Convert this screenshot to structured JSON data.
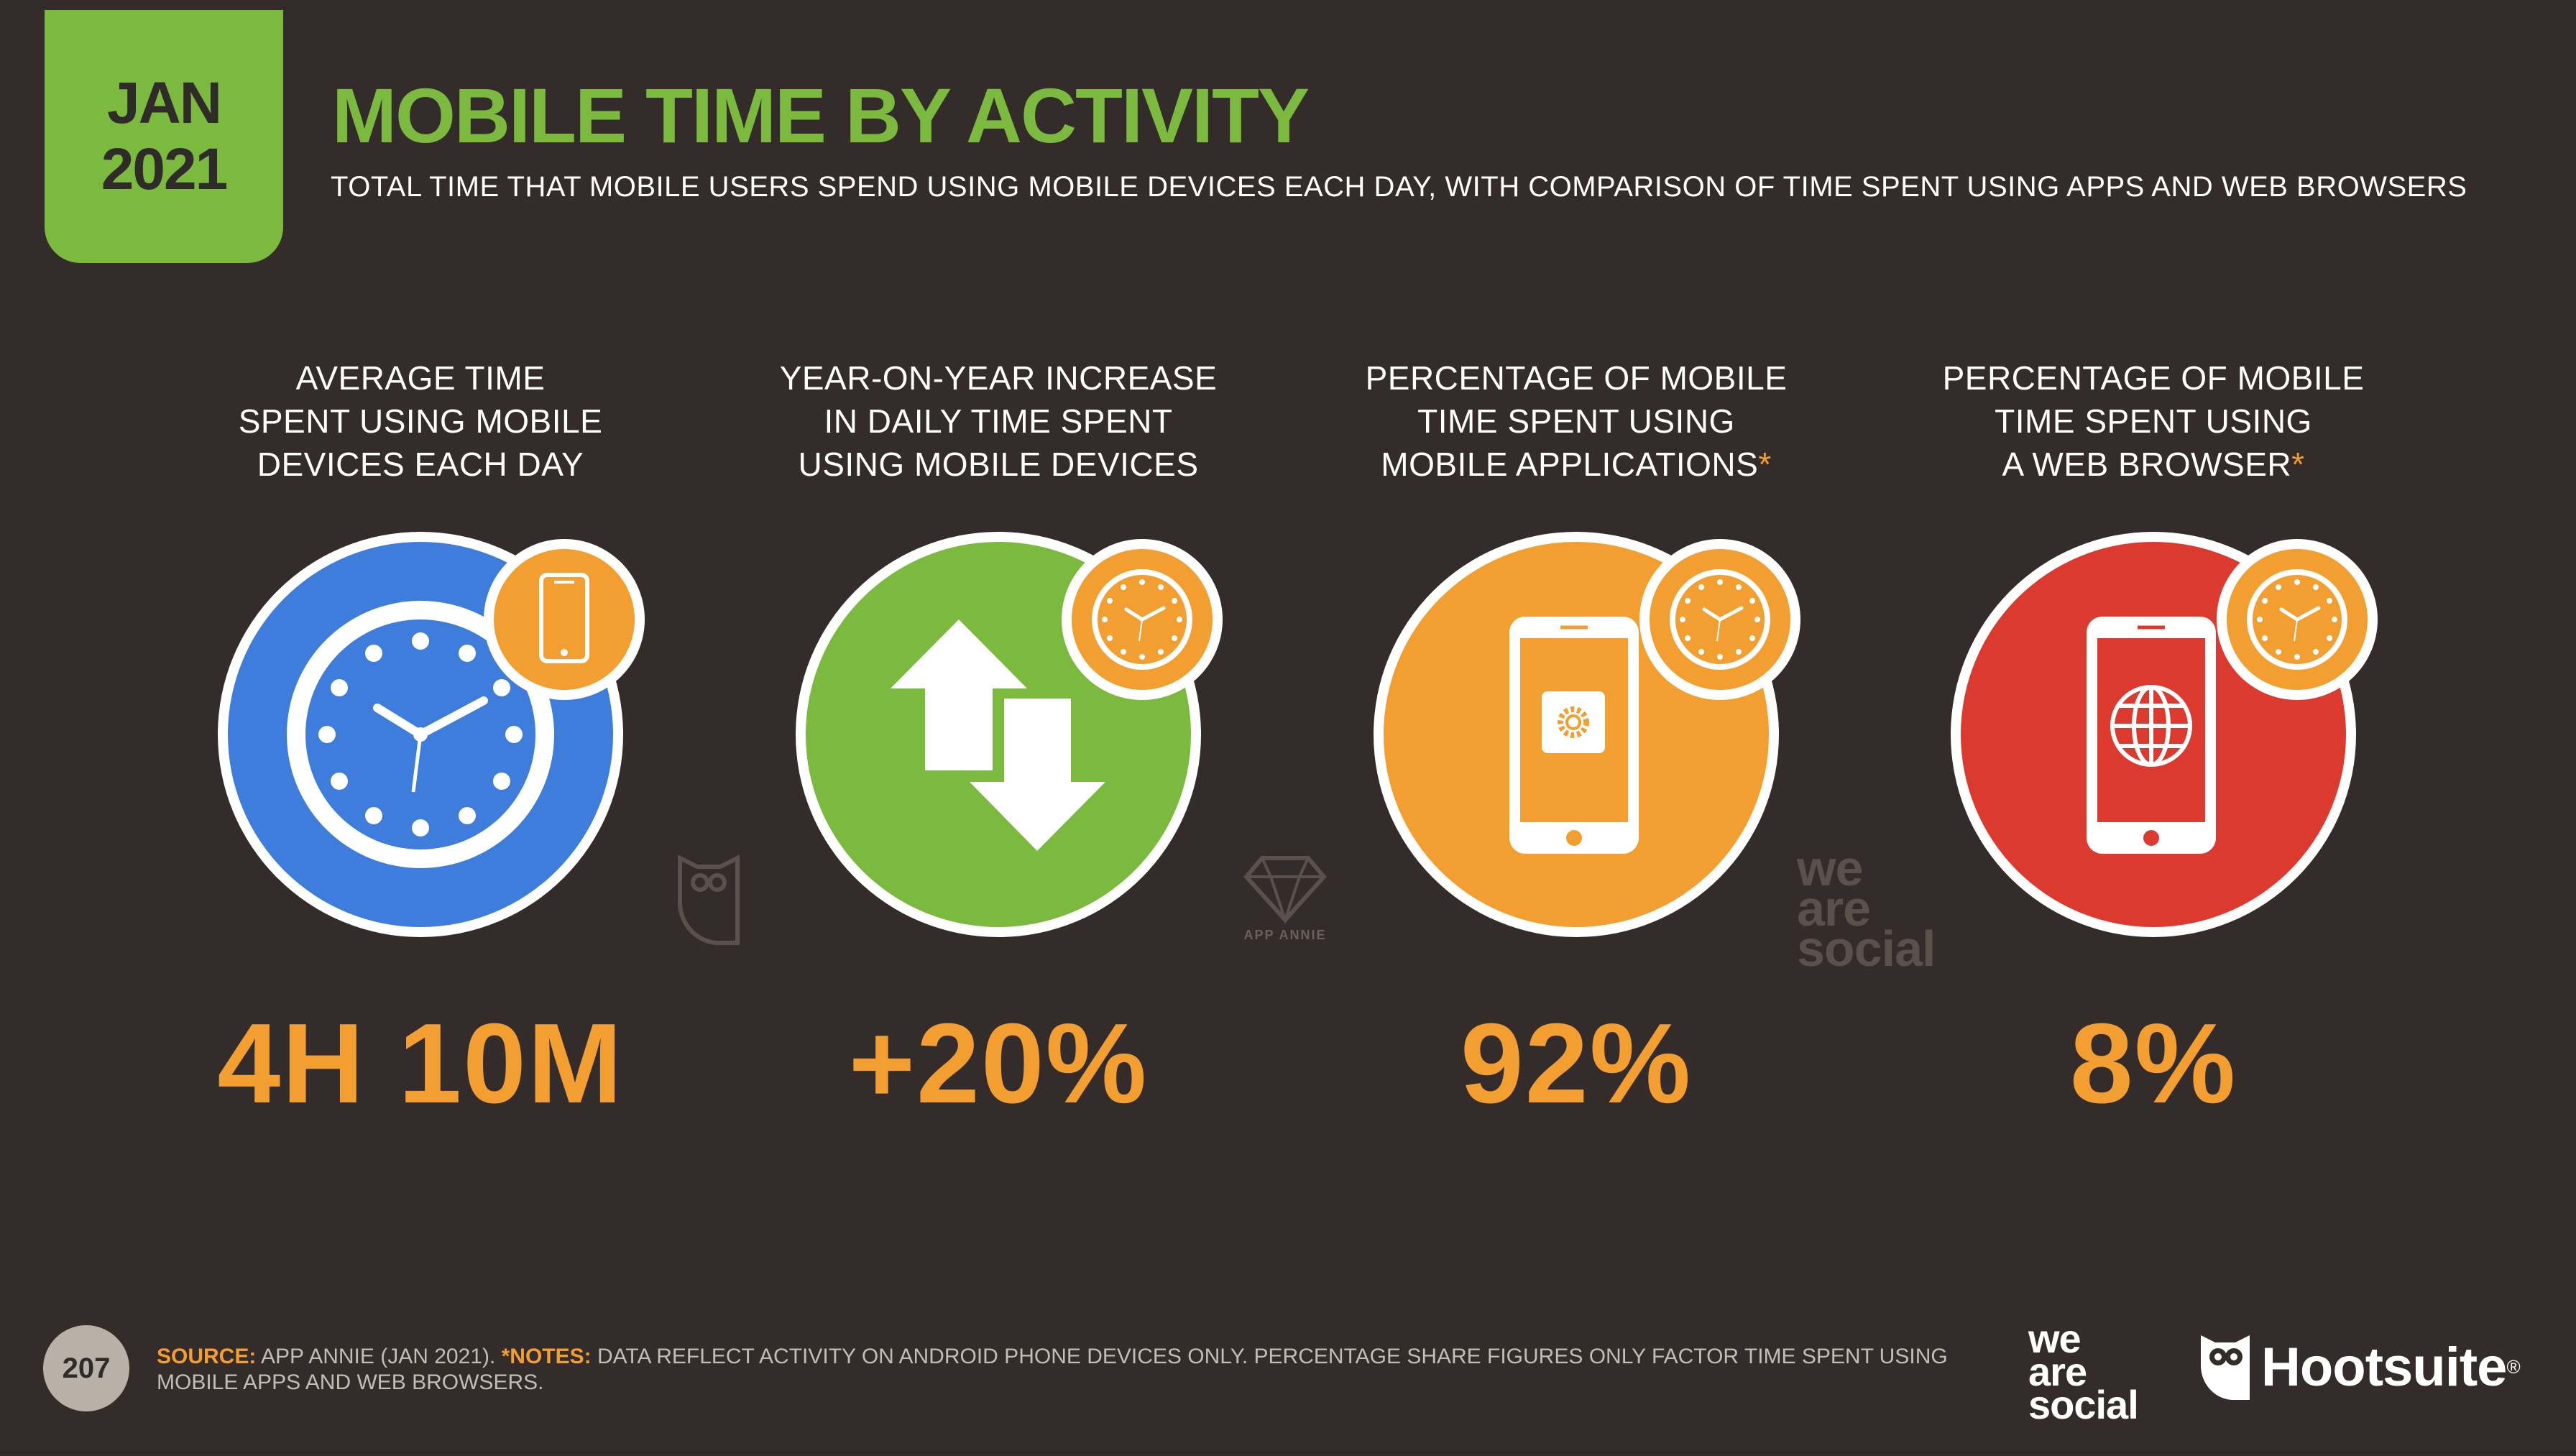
{
  "header": {
    "date_month": "JAN",
    "date_year": "2021",
    "title": "MOBILE TIME BY ACTIVITY",
    "subtitle": "TOTAL TIME THAT MOBILE USERS SPEND USING MOBILE DEVICES EACH DAY, WITH COMPARISON OF TIME SPENT USING APPS AND WEB BROWSERS"
  },
  "stats": [
    {
      "label_lines": [
        "AVERAGE TIME",
        "SPENT USING MOBILE",
        "DEVICES EACH DAY"
      ],
      "label_star": "",
      "value": "4H 10M",
      "circle_color": "#3e7ddc",
      "icon": "clock-icon",
      "badge_icon": "smartphone-icon"
    },
    {
      "label_lines": [
        "YEAR-ON-YEAR INCREASE",
        "IN DAILY TIME SPENT",
        "USING MOBILE DEVICES"
      ],
      "label_star": "",
      "value": "+20%",
      "circle_color": "#7cba3f",
      "icon": "up-down-arrows-icon",
      "badge_icon": "clock-icon"
    },
    {
      "label_lines": [
        "PERCENTAGE OF MOBILE",
        "TIME SPENT USING",
        "MOBILE APPLICATIONS"
      ],
      "label_star": "*",
      "value": "92%",
      "circle_color": "#f29e31",
      "icon": "smartphone-app-icon",
      "badge_icon": "clock-icon"
    },
    {
      "label_lines": [
        "PERCENTAGE OF MOBILE",
        "TIME SPENT USING",
        "A WEB BROWSER"
      ],
      "label_star": "*",
      "value": "8%",
      "circle_color": "#dc3a2f",
      "icon": "smartphone-globe-icon",
      "badge_icon": "clock-icon"
    }
  ],
  "watermarks": {
    "app_annie": "APP ANNIE",
    "was_line1": "we",
    "was_line2": "are",
    "was_line3": "social"
  },
  "footer": {
    "page_number": "207",
    "source_label": "SOURCE:",
    "source_text": " APP ANNIE (JAN 2021). ",
    "notes_label": "*NOTES:",
    "notes_text": " DATA REFLECT ACTIVITY ON ANDROID PHONE DEVICES ONLY. PERCENTAGE SHARE FIGURES ONLY FACTOR TIME SPENT USING MOBILE APPS AND WEB BROWSERS.",
    "logo_was_line1": "we",
    "logo_was_line2": "are",
    "logo_was_line3": "social",
    "hootsuite": "Hootsuite",
    "hootsuite_reg": "®"
  },
  "colors": {
    "background": "#332c2a",
    "green": "#7cba3f",
    "orange": "#f29e31",
    "blue": "#3e7ddc",
    "red": "#dc3a2f",
    "white": "#ffffff"
  }
}
